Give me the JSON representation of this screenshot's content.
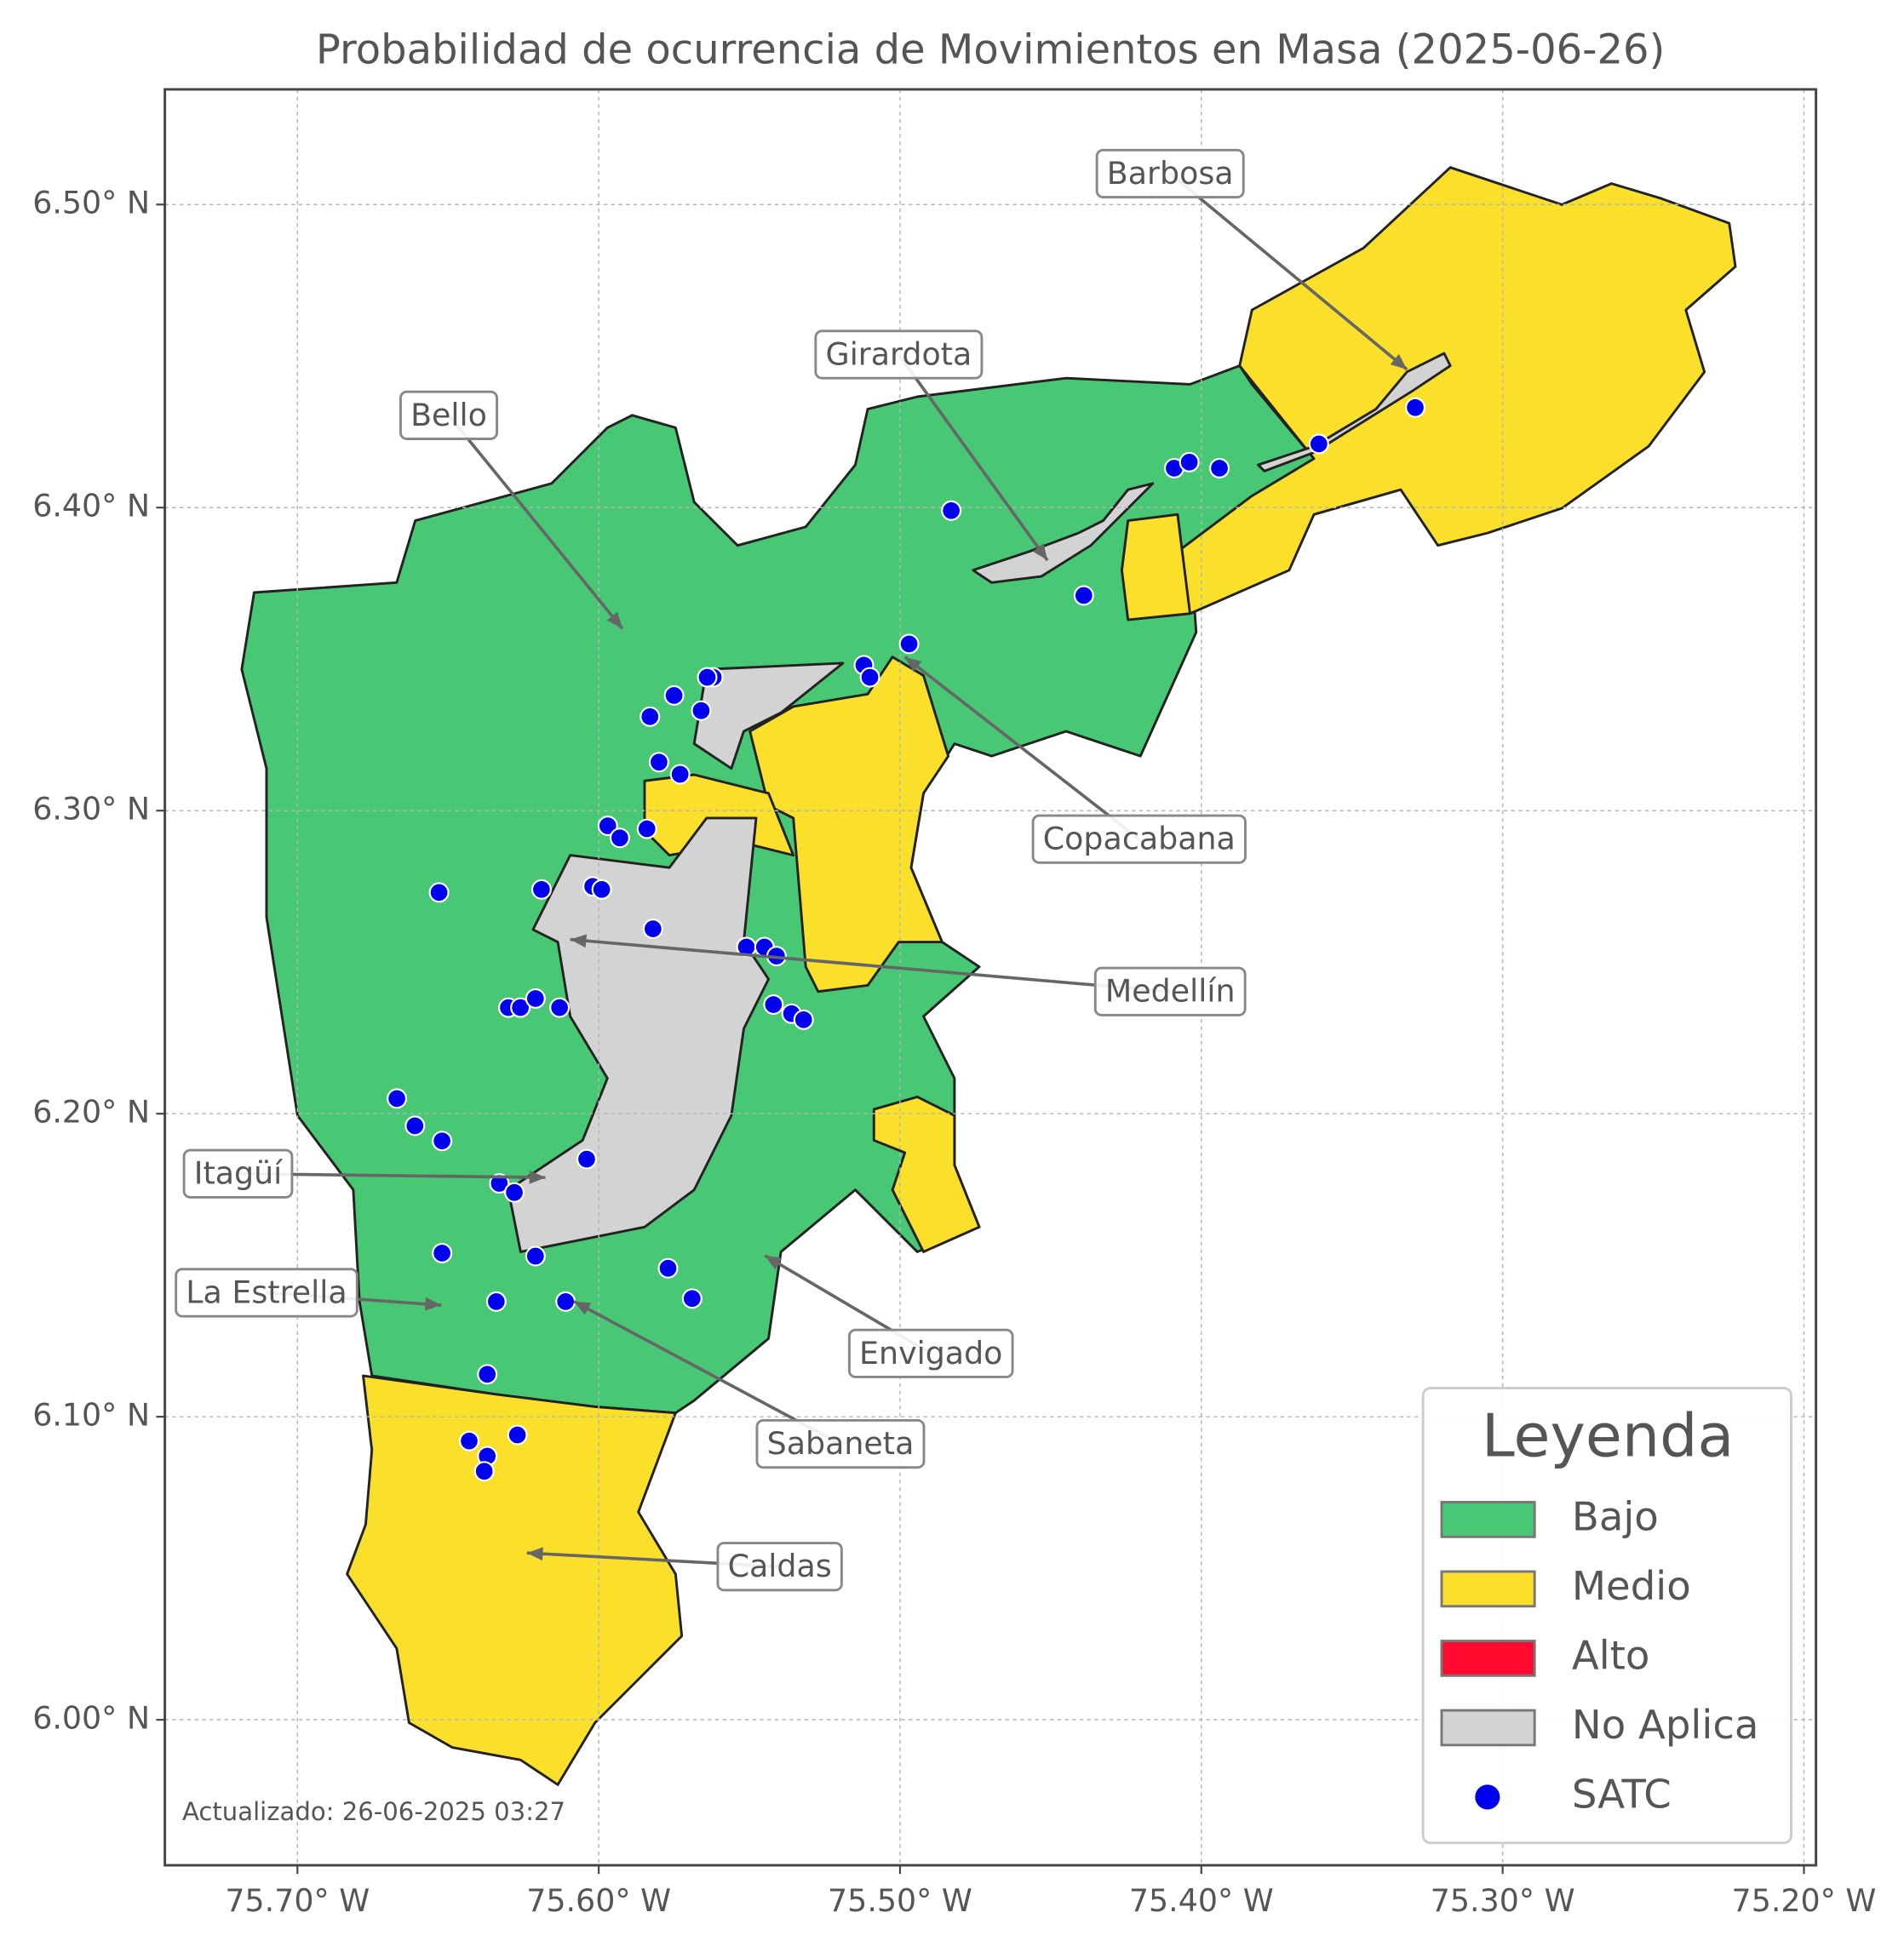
{
  "chart_data": {
    "type": "map",
    "title": "Probabilidad de ocurrencia de Movimientos en Masa (2025-06-26)",
    "footer": "Actualizado: 26-06-2025 03:27",
    "xlim": [
      -75.744,
      -75.196
    ],
    "ylim": [
      5.952,
      6.538
    ],
    "xticks": [
      {
        "value": -75.7,
        "label": "75.70° W"
      },
      {
        "value": -75.6,
        "label": "75.60° W"
      },
      {
        "value": -75.5,
        "label": "75.50° W"
      },
      {
        "value": -75.4,
        "label": "75.40° W"
      },
      {
        "value": -75.3,
        "label": "75.30° W"
      },
      {
        "value": -75.2,
        "label": "75.20° W"
      }
    ],
    "yticks": [
      {
        "value": 6.0,
        "label": "6.00° N"
      },
      {
        "value": 6.1,
        "label": "6.10° N"
      },
      {
        "value": 6.2,
        "label": "6.20° N"
      },
      {
        "value": 6.3,
        "label": "6.30° N"
      },
      {
        "value": 6.4,
        "label": "6.40° N"
      },
      {
        "value": 6.5,
        "label": "6.50° N"
      }
    ],
    "grid": true,
    "legend": {
      "title": "Leyenda",
      "corner": "lower right",
      "entries": [
        {
          "label": "Bajo",
          "color": "#48c774"
        },
        {
          "label": "Medio",
          "color": "#fbe02b"
        },
        {
          "label": "Alto",
          "color": "#ff0a2e"
        },
        {
          "label": "No Aplica",
          "color": "#d3d3d3"
        }
      ]
    },
    "points": {
      "name": "SATC",
      "color": "#0000ee",
      "lon": [
        -75.483,
        -75.409,
        -75.404,
        -75.394,
        -75.361,
        -75.329,
        -75.439,
        -75.497,
        -75.512,
        -75.51,
        -75.562,
        -75.564,
        -75.575,
        -75.566,
        -75.583,
        -75.58,
        -75.573,
        -75.597,
        -75.593,
        -75.584,
        -75.653,
        -75.619,
        -75.602,
        -75.599,
        -75.582,
        -75.551,
        -75.545,
        -75.541,
        -75.542,
        -75.536,
        -75.532,
        -75.63,
        -75.626,
        -75.621,
        -75.613,
        -75.667,
        -75.661,
        -75.652,
        -75.604,
        -75.633,
        -75.628,
        -75.652,
        -75.621,
        -75.577,
        -75.569,
        -75.634,
        -75.611,
        -75.637,
        -75.643,
        -75.627,
        -75.637,
        -75.638
      ],
      "lat": [
        6.399,
        6.413,
        6.415,
        6.413,
        6.421,
        6.433,
        6.371,
        6.355,
        6.348,
        6.344,
        6.344,
        6.344,
        6.338,
        6.333,
        6.331,
        6.316,
        6.312,
        6.295,
        6.291,
        6.294,
        6.273,
        6.274,
        6.275,
        6.274,
        6.261,
        6.255,
        6.255,
        6.252,
        6.236,
        6.233,
        6.231,
        6.235,
        6.235,
        6.238,
        6.235,
        6.205,
        6.196,
        6.191,
        6.185,
        6.177,
        6.174,
        6.154,
        6.153,
        6.149,
        6.139,
        6.138,
        6.138,
        6.114,
        6.092,
        6.094,
        6.087,
        6.082
      ]
    },
    "annotations": [
      "Barbosa",
      "Girardota",
      "Bello",
      "Copacabana",
      "Medellín",
      "Itagüí",
      "La Estrella",
      "Envigado",
      "Sabaneta",
      "Caldas"
    ]
  }
}
